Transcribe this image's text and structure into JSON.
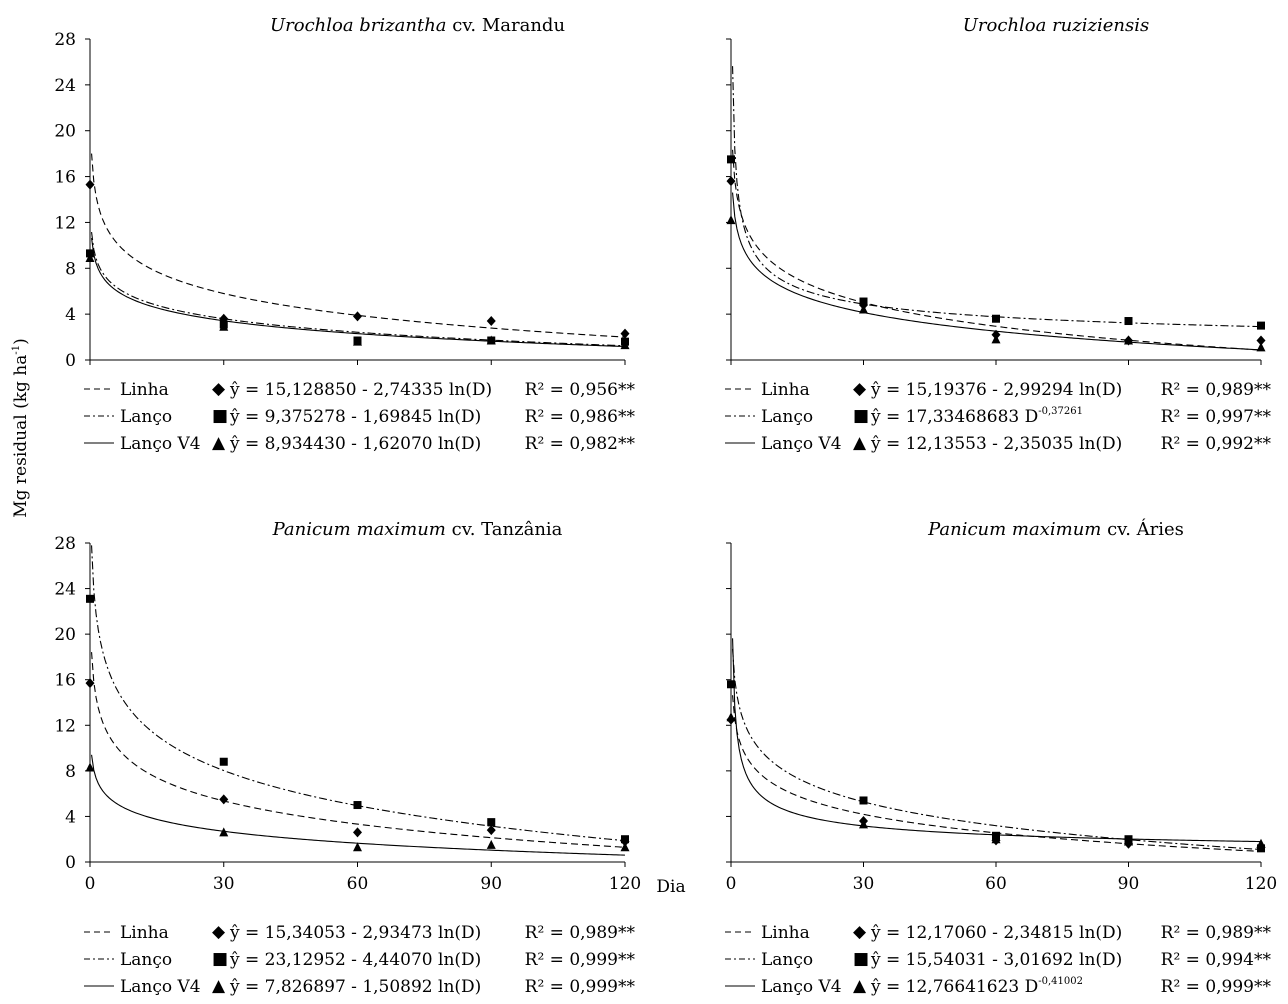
{
  "y_axis_label": "Mg residual (kg ha",
  "y_axis_label_sup": "-1",
  "y_axis_label_close": ")",
  "x_axis_label": "Dia",
  "series_names": [
    "Linha",
    "Lanço",
    "Lanço V4"
  ],
  "chart_data": [
    {
      "type": "scatter",
      "title_italic": "Urochloa brizantha",
      "title_rest": " cv. Marandu",
      "xlim": [
        0,
        120
      ],
      "ylim": [
        0,
        28
      ],
      "x_ticks": [
        0,
        30,
        60,
        90,
        120
      ],
      "y_ticks": [
        0,
        4,
        8,
        12,
        16,
        20,
        24,
        28
      ],
      "show_x_labels": false,
      "show_y_labels": true,
      "series": [
        {
          "name": "Linha",
          "marker": "diamond",
          "x": [
            0,
            30,
            60,
            90,
            120
          ],
          "y": [
            15.3,
            3.6,
            3.8,
            3.4,
            2.3
          ],
          "fit": {
            "form": "log",
            "a": 15.12885,
            "b": -2.74335
          },
          "equation": "ŷ = 15,128850 - 2,74335 ln(D)",
          "r2": "R² = 0,956**"
        },
        {
          "name": "Lanço",
          "marker": "square",
          "x": [
            0,
            30,
            60,
            90,
            120
          ],
          "y": [
            9.3,
            3.1,
            1.7,
            1.7,
            1.6
          ],
          "fit": {
            "form": "log",
            "a": 9.375278,
            "b": -1.69845
          },
          "equation": "ŷ = 9,375278 - 1,69845 ln(D)",
          "r2": "R² = 0,986**"
        },
        {
          "name": "Lanço V4",
          "marker": "triangle",
          "x": [
            0,
            30,
            60,
            90,
            120
          ],
          "y": [
            8.9,
            2.9,
            1.6,
            1.7,
            1.3
          ],
          "fit": {
            "form": "log",
            "a": 8.93443,
            "b": -1.6207
          },
          "equation": "ŷ = 8,934430 - 1,62070 ln(D)",
          "r2": "R² = 0,982**"
        }
      ]
    },
    {
      "type": "scatter",
      "title_italic": "Urochloa ruziziensis",
      "title_rest": "",
      "xlim": [
        0,
        120
      ],
      "ylim": [
        0,
        28
      ],
      "x_ticks": [
        0,
        30,
        60,
        90,
        120
      ],
      "y_ticks": [
        0,
        4,
        8,
        12,
        16,
        20,
        24,
        28
      ],
      "show_x_labels": false,
      "show_y_labels": false,
      "series": [
        {
          "name": "Linha",
          "marker": "diamond",
          "x": [
            0,
            30,
            60,
            90,
            120
          ],
          "y": [
            15.6,
            4.8,
            2.2,
            1.7,
            1.7
          ],
          "fit": {
            "form": "log",
            "a": 15.19376,
            "b": -2.99294
          },
          "equation": "ŷ = 15,19376 - 2,99294 ln(D)",
          "r2": "R² = 0,989**"
        },
        {
          "name": "Lanço",
          "marker": "square",
          "x": [
            0,
            30,
            60,
            90,
            120
          ],
          "y": [
            17.5,
            5.1,
            3.6,
            3.4,
            3.0
          ],
          "fit": {
            "form": "power",
            "a": 17.33468683,
            "b": -0.37261
          },
          "equation": "ŷ = 17,33468683 D",
          "equation_sup": "-0,37261",
          "r2": "R² = 0,997**"
        },
        {
          "name": "Lanço V4",
          "marker": "triangle",
          "x": [
            0,
            30,
            60,
            90,
            120
          ],
          "y": [
            12.2,
            4.4,
            1.8,
            1.7,
            1.1
          ],
          "fit": {
            "form": "log",
            "a": 12.13553,
            "b": -2.35035
          },
          "equation": "ŷ = 12,13553 - 2,35035 ln(D)",
          "r2": "R² = 0,992**"
        }
      ]
    },
    {
      "type": "scatter",
      "title_italic": "Panicum maximum",
      "title_rest": " cv. Tanzânia",
      "xlim": [
        0,
        120
      ],
      "ylim": [
        0,
        28
      ],
      "x_ticks": [
        0,
        30,
        60,
        90,
        120
      ],
      "y_ticks": [
        0,
        4,
        8,
        12,
        16,
        20,
        24,
        28
      ],
      "show_x_labels": true,
      "show_y_labels": true,
      "series": [
        {
          "name": "Linha",
          "marker": "diamond",
          "x": [
            0,
            30,
            60,
            90,
            120
          ],
          "y": [
            15.7,
            5.5,
            2.6,
            2.8,
            1.8
          ],
          "fit": {
            "form": "log",
            "a": 15.34053,
            "b": -2.93473
          },
          "equation": "ŷ = 15,34053 - 2,93473 ln(D)",
          "r2": "R² = 0,989**"
        },
        {
          "name": "Lanço",
          "marker": "square",
          "x": [
            0,
            30,
            60,
            90,
            120
          ],
          "y": [
            23.1,
            8.8,
            5.0,
            3.5,
            2.0
          ],
          "fit": {
            "form": "log",
            "a": 23.12952,
            "b": -4.4407
          },
          "equation": "ŷ = 23,12952 - 4,44070 ln(D)",
          "r2": "R² = 0,999**"
        },
        {
          "name": "Lanço V4",
          "marker": "triangle",
          "x": [
            0,
            30,
            60,
            90,
            120
          ],
          "y": [
            8.3,
            2.6,
            1.3,
            1.5,
            1.3
          ],
          "fit": {
            "form": "log",
            "a": 7.826897,
            "b": -1.50892
          },
          "equation": "ŷ = 7,826897 - 1,50892 ln(D)",
          "r2": "R² = 0,999**"
        }
      ]
    },
    {
      "type": "scatter",
      "title_italic": "Panicum maximum",
      "title_rest": " cv. Áries",
      "xlim": [
        0,
        120
      ],
      "ylim": [
        0,
        28
      ],
      "x_ticks": [
        0,
        30,
        60,
        90,
        120
      ],
      "y_ticks": [
        0,
        4,
        8,
        12,
        16,
        20,
        24,
        28
      ],
      "show_x_labels": true,
      "show_y_labels": false,
      "series": [
        {
          "name": "Linha",
          "marker": "diamond",
          "x": [
            0,
            30,
            60,
            90,
            120
          ],
          "y": [
            12.5,
            3.6,
            1.9,
            1.6,
            1.3
          ],
          "fit": {
            "form": "log",
            "a": 12.1706,
            "b": -2.34815
          },
          "equation": "ŷ = 12,17060 - 2,34815 ln(D)",
          "r2": "R² = 0,989**"
        },
        {
          "name": "Lanço",
          "marker": "square",
          "x": [
            0,
            30,
            60,
            90,
            120
          ],
          "y": [
            15.6,
            5.4,
            2.3,
            2.0,
            1.2
          ],
          "fit": {
            "form": "log",
            "a": 15.54031,
            "b": -3.01692
          },
          "equation": "ŷ = 15,54031 - 3,01692 ln(D)",
          "r2": "R² = 0,994**"
        },
        {
          "name": "Lanço V4",
          "marker": "triangle",
          "x": [
            0,
            30,
            60,
            90,
            120
          ],
          "y": [
            12.7,
            3.3,
            2.0,
            1.8,
            1.6
          ],
          "fit": {
            "form": "power",
            "a": 12.76641623,
            "b": -0.41002
          },
          "equation": "ŷ = 12,76641623 D",
          "equation_sup": "-0,41002",
          "r2": "R² = 0,999**"
        }
      ]
    }
  ]
}
